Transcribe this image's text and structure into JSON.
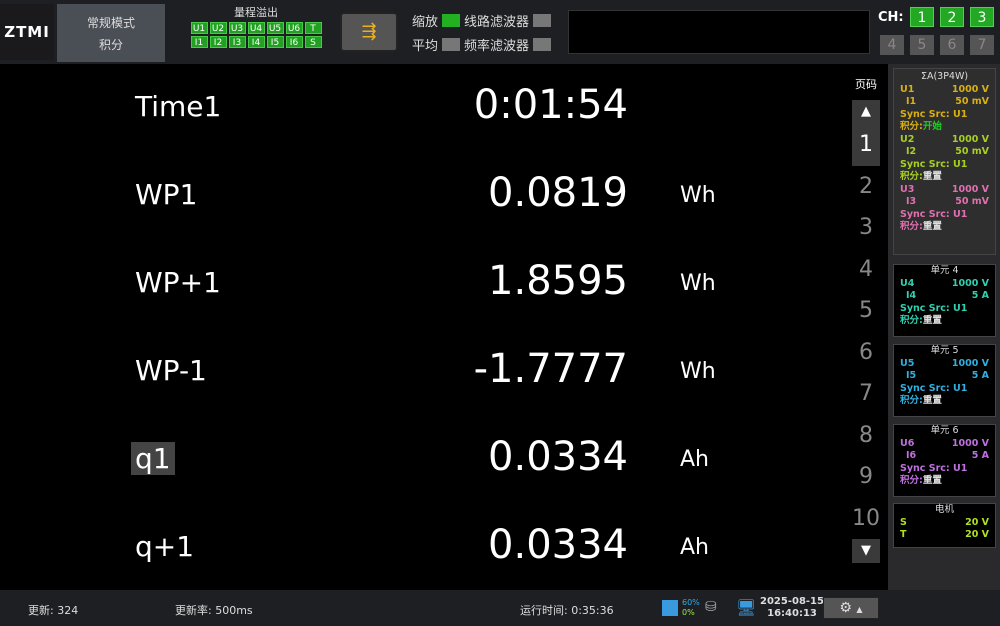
{
  "header": {
    "logo": "ZTMI",
    "mode": "常规模式",
    "submode": "积分",
    "range_title": "量程溢出",
    "range_u": [
      "U1",
      "U2",
      "U3",
      "U4",
      "U5",
      "U6",
      "T"
    ],
    "range_i": [
      "I1",
      "I2",
      "I3",
      "I4",
      "I5",
      "I6",
      "S"
    ],
    "scale_label": "缩放",
    "scale_on": true,
    "avg_label": "平均",
    "avg_on": false,
    "line_filter": "线路滤波器",
    "freq_filter": "频率滤波器",
    "ch_label": "CH:",
    "channels_active": [
      "1",
      "2",
      "3"
    ],
    "channels_inactive": [
      "4",
      "5",
      "6",
      "7"
    ]
  },
  "rows": [
    {
      "label": "Time1",
      "value": "0:01:54",
      "unit": ""
    },
    {
      "label": "WP1",
      "value": "0.0819",
      "unit": "Wh"
    },
    {
      "label": "WP+1",
      "value": "1.8595",
      "unit": "Wh"
    },
    {
      "label": "WP-1",
      "value": "-1.7777",
      "unit": "Wh"
    },
    {
      "label": "q1",
      "value": "0.0334",
      "unit": "Ah"
    },
    {
      "label": "q+1",
      "value": "0.0334",
      "unit": "Ah"
    }
  ],
  "pager": {
    "title": "页码",
    "pages": [
      "1",
      "2",
      "3",
      "4",
      "5",
      "6",
      "7",
      "8",
      "9",
      "10"
    ],
    "selected": "1"
  },
  "panel": {
    "sigma": {
      "title": "ΣA(3P4W)",
      "units": [
        {
          "u": "U1",
          "uv": "1000 V",
          "i": "I1",
          "iv": "50 mV",
          "sync": "Sync Src: U1",
          "integ": "积分:",
          "state": "开始",
          "color": "#d9b010"
        },
        {
          "u": "U2",
          "uv": "1000 V",
          "i": "I2",
          "iv": "50 mV",
          "sync": "Sync Src: U1",
          "integ": "积分:",
          "state": "重置",
          "color": "#a8d020"
        },
        {
          "u": "U3",
          "uv": "1000 V",
          "i": "I3",
          "iv": "50 mV",
          "sync": "Sync Src: U1",
          "integ": "积分:",
          "state": "重置",
          "color": "#e070b0"
        }
      ]
    },
    "elements": [
      {
        "title": "单元 4",
        "u": "U4",
        "uv": "1000 V",
        "i": "I4",
        "iv": "5 A",
        "sync": "Sync Src: U1",
        "integ": "积分:",
        "state": "重置",
        "color": "#30d0b0"
      },
      {
        "title": "单元 5",
        "u": "U5",
        "uv": "1000 V",
        "i": "I5",
        "iv": "5 A",
        "sync": "Sync Src: U1",
        "integ": "积分:",
        "state": "重置",
        "color": "#30b0e0"
      },
      {
        "title": "单元 6",
        "u": "U6",
        "uv": "1000 V",
        "i": "I6",
        "iv": "5 A",
        "sync": "Sync Src: U1",
        "integ": "积分:",
        "state": "重置",
        "color": "#c070e0"
      }
    ],
    "motor": {
      "title": "电机",
      "s": "S",
      "sv": "20 V",
      "t": "T",
      "tv": "20 V",
      "color": "#b0e020"
    }
  },
  "status": {
    "update": "更新: 324",
    "rate": "更新率: 500ms",
    "runtime": "运行时间: 0:35:36",
    "cpu": "60%",
    "mem": "0%",
    "date": "2025-08-15",
    "time": "16:40:13"
  }
}
